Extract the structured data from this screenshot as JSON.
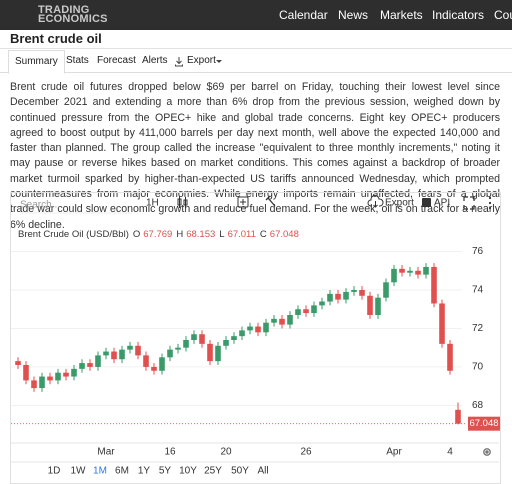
{
  "nav": {
    "logo": [
      "TRADING",
      "ECONOMICS"
    ],
    "links": [
      "Calendar",
      "News",
      "Markets",
      "Indicators",
      "Cou"
    ]
  },
  "page": {
    "title": "Brent crude oil",
    "tabs": [
      "Summary",
      "Stats",
      "Forecast",
      "Alerts",
      "Export"
    ],
    "active_tab": "Summary",
    "summary": "Brent crude oil futures dropped below $69 per barrel on Friday, touching their lowest level since December 2021 and extending a more than 6% drop from the previous session, weighed down by continued pressure from the OPEC+ hike and global trade concerns. Eight key OPEC+ producers agreed to boost output by 411,000 barrels per day next month, well above the expected 140,000 and faster than planned. The group called the increase \"equivalent to three monthly increments,\" noting it may pause or reverse hikes based on market conditions. This comes against a backdrop of broader market turmoil sparked by higher-than-expected US tariffs announced Wednesday, which prompted countermeasures from major economies. While energy imports remain unaffected, fears of a global trade war could slow economic growth and reduce fuel demand. For the week, oil is on track for a nearly 6% decline."
  },
  "toolbar": {
    "search": "Search...",
    "interval": "1H",
    "export": "Export",
    "api": "API"
  },
  "chart_data": {
    "type": "candlestick",
    "ohlc_labels": [
      "O",
      "H",
      "L",
      "C"
    ],
    "up_color": "#3a9a6a",
    "down_color": "#e0504f",
    "categories": [
      null,
      null,
      null,
      null,
      null,
      null,
      null,
      null,
      null,
      null,
      null,
      "Mar",
      null,
      null,
      null,
      null,
      null,
      null,
      null,
      "16",
      null,
      null,
      null,
      null,
      null,
      null,
      "20",
      null,
      null,
      null,
      null,
      null,
      null,
      null,
      null,
      null,
      "26",
      null,
      null,
      null,
      null,
      null,
      null,
      null,
      null,
      null,
      null,
      "Apr",
      null,
      null,
      null,
      null,
      null,
      null,
      "4",
      null
    ],
    "series": [
      {
        "name": "Brent Crude Oil (USD/Bbl)",
        "open": [
          70.3,
          70.1,
          69.3,
          68.9,
          69.5,
          69.3,
          69.7,
          69.5,
          69.9,
          70.2,
          70.0,
          70.6,
          70.8,
          70.4,
          70.9,
          71.1,
          70.6,
          70.0,
          69.8,
          70.5,
          70.9,
          71.0,
          71.4,
          71.7,
          71.2,
          70.3,
          71.1,
          71.4,
          71.6,
          71.9,
          72.1,
          71.8,
          72.3,
          72.5,
          72.2,
          72.7,
          73.0,
          72.8,
          73.2,
          73.4,
          73.8,
          73.5,
          73.9,
          74.0,
          73.7,
          72.7,
          73.6,
          74.4,
          75.1,
          74.9,
          75.0,
          74.8,
          75.2,
          73.3,
          71.2,
          67.769
        ],
        "high": [
          70.5,
          70.3,
          69.5,
          69.7,
          69.7,
          69.9,
          69.9,
          70.1,
          70.4,
          70.4,
          70.8,
          71.0,
          71.0,
          71.1,
          71.3,
          71.3,
          70.8,
          70.2,
          70.7,
          71.1,
          71.2,
          71.6,
          71.9,
          71.9,
          71.4,
          71.3,
          71.6,
          71.8,
          72.1,
          72.3,
          72.3,
          72.5,
          72.7,
          72.7,
          72.9,
          73.2,
          73.2,
          73.4,
          73.6,
          74.0,
          74.0,
          74.1,
          74.2,
          74.2,
          73.9,
          73.8,
          74.6,
          75.3,
          75.3,
          75.2,
          75.2,
          75.4,
          75.4,
          73.5,
          71.4,
          68.153
        ],
        "low": [
          69.9,
          69.1,
          68.7,
          68.7,
          69.1,
          69.1,
          69.3,
          69.3,
          69.7,
          69.8,
          69.8,
          70.4,
          70.2,
          70.2,
          70.7,
          70.4,
          69.8,
          69.6,
          69.6,
          70.3,
          70.7,
          70.8,
          71.2,
          71.0,
          70.1,
          70.1,
          70.9,
          71.2,
          71.4,
          71.7,
          71.6,
          71.6,
          72.1,
          72.0,
          72.0,
          72.5,
          72.6,
          72.6,
          73.0,
          73.2,
          73.3,
          73.3,
          73.7,
          73.5,
          72.5,
          72.5,
          73.4,
          74.2,
          74.7,
          74.7,
          74.6,
          74.6,
          73.1,
          71.0,
          69.6,
          67.011
        ],
        "close": [
          70.1,
          69.3,
          68.9,
          69.5,
          69.3,
          69.7,
          69.5,
          69.9,
          70.2,
          70.0,
          70.6,
          70.8,
          70.4,
          70.9,
          71.1,
          70.6,
          70.0,
          69.8,
          70.5,
          70.9,
          71.0,
          71.4,
          71.7,
          71.2,
          70.3,
          71.1,
          71.4,
          71.6,
          71.9,
          72.1,
          71.8,
          72.3,
          72.5,
          72.2,
          72.7,
          73.0,
          72.8,
          73.2,
          73.4,
          73.8,
          73.5,
          73.9,
          74.0,
          73.7,
          72.7,
          73.6,
          74.4,
          75.1,
          74.9,
          75.0,
          74.8,
          75.2,
          73.3,
          71.2,
          69.8,
          67.048
        ]
      }
    ],
    "ylim": [
      66.2,
      76.6
    ],
    "yticks": [
      68,
      70,
      72,
      74,
      76
    ],
    "grid": true
  },
  "ranges": [
    "1D",
    "1W",
    "1M",
    "6M",
    "1Y",
    "5Y",
    "10Y",
    "25Y",
    "50Y",
    "All"
  ],
  "active_range": "1M"
}
